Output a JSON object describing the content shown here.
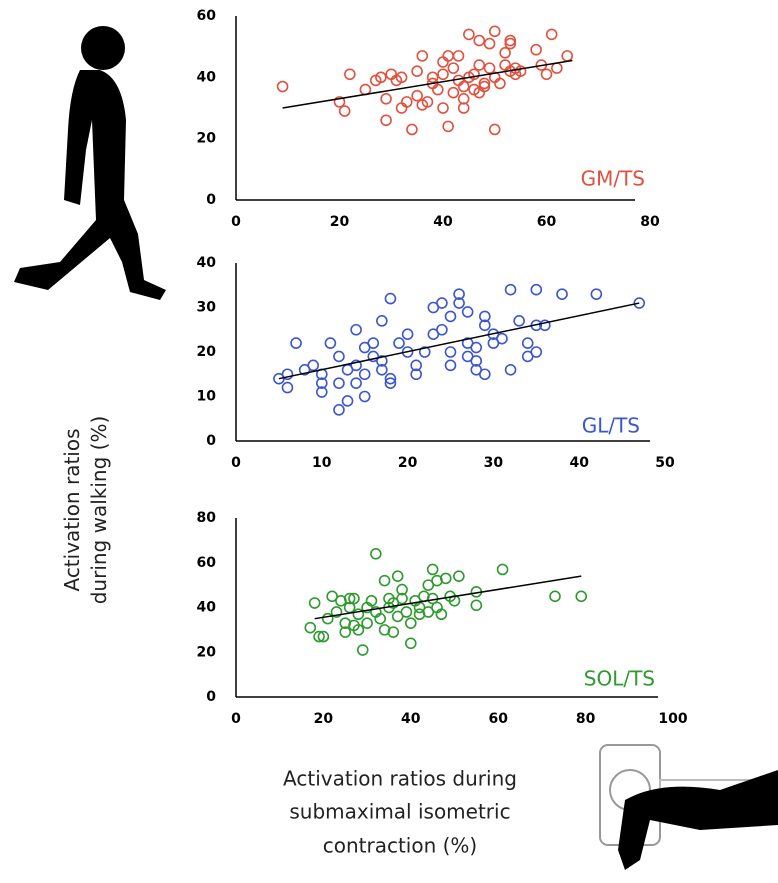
{
  "chart_data": [
    {
      "type": "scatter",
      "label": "GM/TS",
      "color": "#e0513f",
      "x": [
        9,
        20,
        21,
        22,
        25,
        27,
        28,
        29,
        29,
        30,
        31,
        32,
        32,
        33,
        34,
        35,
        35,
        36,
        37,
        38,
        39,
        40,
        40,
        40,
        41,
        41,
        42,
        42,
        43,
        43,
        44,
        44,
        45,
        45,
        46,
        46,
        47,
        47,
        48,
        48,
        49,
        49,
        50,
        50,
        50,
        51,
        52,
        52,
        53,
        53,
        53,
        54,
        54,
        55,
        58,
        59,
        60,
        61,
        62,
        64,
        36,
        38,
        44,
        47
      ],
      "values": [
        37,
        32,
        29,
        41,
        36,
        39,
        40,
        26,
        33,
        41,
        39,
        40,
        30,
        32,
        23,
        42,
        34,
        47,
        32,
        40,
        36,
        45,
        41,
        30,
        24,
        47,
        35,
        43,
        39,
        47,
        37,
        33,
        40,
        54,
        41,
        36,
        52,
        44,
        38,
        37,
        51,
        43,
        40,
        55,
        23,
        38,
        44,
        48,
        51,
        52,
        42,
        43,
        41,
        42,
        49,
        44,
        41,
        54,
        43,
        47,
        31,
        38,
        30,
        35
      ],
      "trendline": {
        "x": [
          9,
          65
        ],
        "y": [
          30,
          45.5
        ]
      },
      "xlim": [
        0,
        80
      ],
      "xticks": [
        0,
        20,
        40,
        60,
        80
      ],
      "ylim": [
        0,
        60
      ],
      "yticks": [
        0,
        20,
        40,
        60
      ]
    },
    {
      "type": "scatter",
      "label": "GL/TS",
      "color": "#3b56d0",
      "x": [
        5,
        6,
        6,
        7,
        8,
        9,
        10,
        10,
        10,
        11,
        12,
        12,
        12,
        13,
        13,
        14,
        14,
        14,
        15,
        15,
        15,
        16,
        16,
        17,
        17,
        17,
        18,
        18,
        18,
        19,
        20,
        20,
        21,
        21,
        22,
        23,
        23,
        24,
        25,
        25,
        25,
        26,
        26,
        27,
        27,
        28,
        28,
        28,
        29,
        29,
        29,
        30,
        30,
        31,
        32,
        32,
        33,
        34,
        34,
        35,
        35,
        35,
        36,
        38,
        42,
        47,
        24,
        27
      ],
      "values": [
        14,
        15,
        12,
        22,
        16,
        17,
        13,
        11,
        15,
        22,
        19,
        13,
        7,
        16,
        9,
        25,
        17,
        13,
        21,
        15,
        10,
        19,
        22,
        18,
        16,
        27,
        13,
        14,
        32,
        22,
        24,
        20,
        17,
        15,
        20,
        30,
        24,
        31,
        28,
        20,
        17,
        31,
        33,
        22,
        19,
        21,
        18,
        16,
        15,
        28,
        26,
        22,
        24,
        23,
        34,
        16,
        27,
        19,
        22,
        26,
        34,
        20,
        26,
        33,
        33,
        31,
        25,
        29
      ],
      "trendline": {
        "x": [
          5,
          47
        ],
        "y": [
          14,
          31
        ]
      },
      "xlim": [
        0,
        50
      ],
      "xticks": [
        0,
        10,
        20,
        30,
        40,
        50
      ],
      "ylim": [
        0,
        40
      ],
      "yticks": [
        0,
        10,
        20,
        30,
        40
      ]
    },
    {
      "type": "scatter",
      "label": "SOL/TS",
      "color": "#2f9a2f",
      "x": [
        17,
        18,
        19,
        20,
        21,
        22,
        23,
        24,
        25,
        25,
        26,
        26,
        27,
        28,
        28,
        29,
        30,
        30,
        31,
        32,
        32,
        33,
        34,
        34,
        35,
        35,
        36,
        37,
        37,
        38,
        38,
        39,
        40,
        40,
        41,
        42,
        43,
        44,
        44,
        45,
        45,
        46,
        46,
        47,
        48,
        49,
        50,
        51,
        55,
        55,
        61,
        73,
        79,
        36,
        42,
        27
      ],
      "values": [
        31,
        42,
        27,
        27,
        35,
        45,
        38,
        43,
        33,
        29,
        40,
        44,
        32,
        30,
        37,
        21,
        40,
        33,
        43,
        64,
        38,
        35,
        30,
        52,
        44,
        40,
        42,
        54,
        36,
        48,
        44,
        38,
        33,
        24,
        43,
        40,
        45,
        50,
        38,
        57,
        44,
        52,
        40,
        37,
        53,
        45,
        43,
        54,
        47,
        41,
        57,
        45,
        45,
        29,
        37,
        44
      ],
      "trendline": {
        "x": [
          18,
          79
        ],
        "y": [
          35,
          54
        ]
      },
      "xlim": [
        0,
        100
      ],
      "xticks": [
        0,
        20,
        40,
        60,
        80,
        100
      ],
      "ylim": [
        0,
        80
      ],
      "yticks": [
        0,
        20,
        40,
        60,
        80
      ]
    }
  ],
  "y_label": [
    "Activation ratios",
    "during walking (%)"
  ],
  "x_label": [
    "Activation ratios during",
    "submaximal isometric",
    "contraction (%)"
  ]
}
